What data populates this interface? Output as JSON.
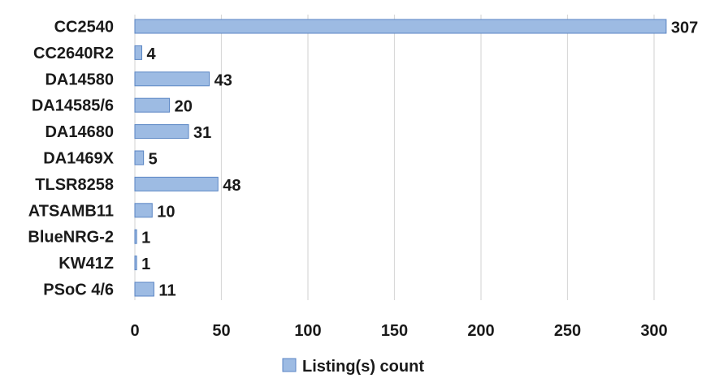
{
  "chart_data": {
    "type": "bar",
    "orientation": "horizontal",
    "categories": [
      "CC2540",
      "CC2640R2",
      "DA14580",
      "DA14585/6",
      "DA14680",
      "DA1469X",
      "TLSR8258",
      "ATSAMB11",
      "BlueNRG-2",
      "KW41Z",
      "PSoC 4/6"
    ],
    "series": [
      {
        "name": "Listing(s) count",
        "values": [
          307,
          4,
          43,
          20,
          31,
          5,
          48,
          10,
          1,
          1,
          11
        ],
        "color": "#9dbbe3",
        "edge_color": "#5b86c4"
      }
    ],
    "data_labels": [
      "307",
      "4",
      "43",
      "20",
      "31",
      "5",
      "48",
      "10",
      "1",
      "1",
      "11"
    ],
    "xticks": [
      "0",
      "50",
      "100",
      "150",
      "200",
      "250",
      "300"
    ],
    "xlim": [
      0,
      310
    ],
    "grid": "vertical",
    "grid_color": "#d9d9d9",
    "legend_position": "bottom"
  }
}
